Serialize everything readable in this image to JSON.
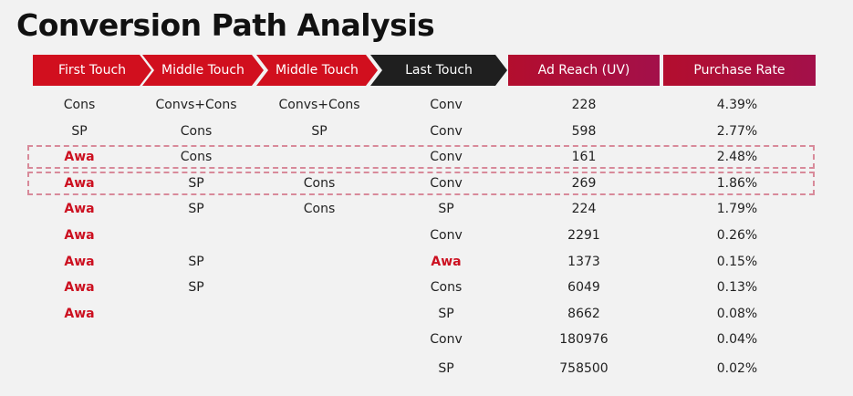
{
  "title": "Conversion Path Analysis",
  "headers": {
    "first_touch": "First Touch",
    "middle_touch_1": "Middle Touch",
    "middle_touch_2": "Middle Touch",
    "last_touch": "Last Touch",
    "ad_reach": "Ad Reach (UV)",
    "purchase_rate": "Purchase Rate"
  },
  "colors": {
    "accent_red": "#d10f1e",
    "last_touch_black": "#1f1f1f",
    "metric_header": "#a3104a",
    "awa_text": "#cc1020",
    "highlight_dash": "#d88a9a"
  },
  "rows": [
    {
      "first": "Cons",
      "mid1": "Convs+Cons",
      "mid2": "Convs+Cons",
      "last": "Conv",
      "reach": "228",
      "rate": "4.39%"
    },
    {
      "first": "SP",
      "mid1": "Cons",
      "mid2": "SP",
      "last": "Conv",
      "reach": "598",
      "rate": "2.77%"
    },
    {
      "first": "Awa",
      "mid1": "Cons",
      "mid2": "",
      "last": "Conv",
      "reach": "161",
      "rate": "2.48%",
      "highlighted": true
    },
    {
      "first": "Awa",
      "mid1": "SP",
      "mid2": "Cons",
      "last": "Conv",
      "reach": "269",
      "rate": "1.86%",
      "highlighted": true
    },
    {
      "first": "Awa",
      "mid1": "SP",
      "mid2": "Cons",
      "last": "SP",
      "reach": "224",
      "rate": "1.79%"
    },
    {
      "first": "Awa",
      "mid1": "",
      "mid2": "",
      "last": "Conv",
      "reach": "2291",
      "rate": "0.26%"
    },
    {
      "first": "Awa",
      "mid1": "SP",
      "mid2": "",
      "last": "Awa",
      "reach": "1373",
      "rate": "0.15%"
    },
    {
      "first": "Awa",
      "mid1": "SP",
      "mid2": "",
      "last": "Cons",
      "reach": "6049",
      "rate": "0.13%"
    },
    {
      "first": "Awa",
      "mid1": "",
      "mid2": "",
      "last": "SP",
      "reach": "8662",
      "rate": "0.08%"
    },
    {
      "first": "",
      "mid1": "",
      "mid2": "",
      "last": "Conv",
      "reach": "180976",
      "rate": "0.04%"
    },
    {
      "first": "",
      "mid1": "",
      "mid2": "",
      "last": "SP",
      "reach": "758500",
      "rate": "0.02%"
    }
  ]
}
